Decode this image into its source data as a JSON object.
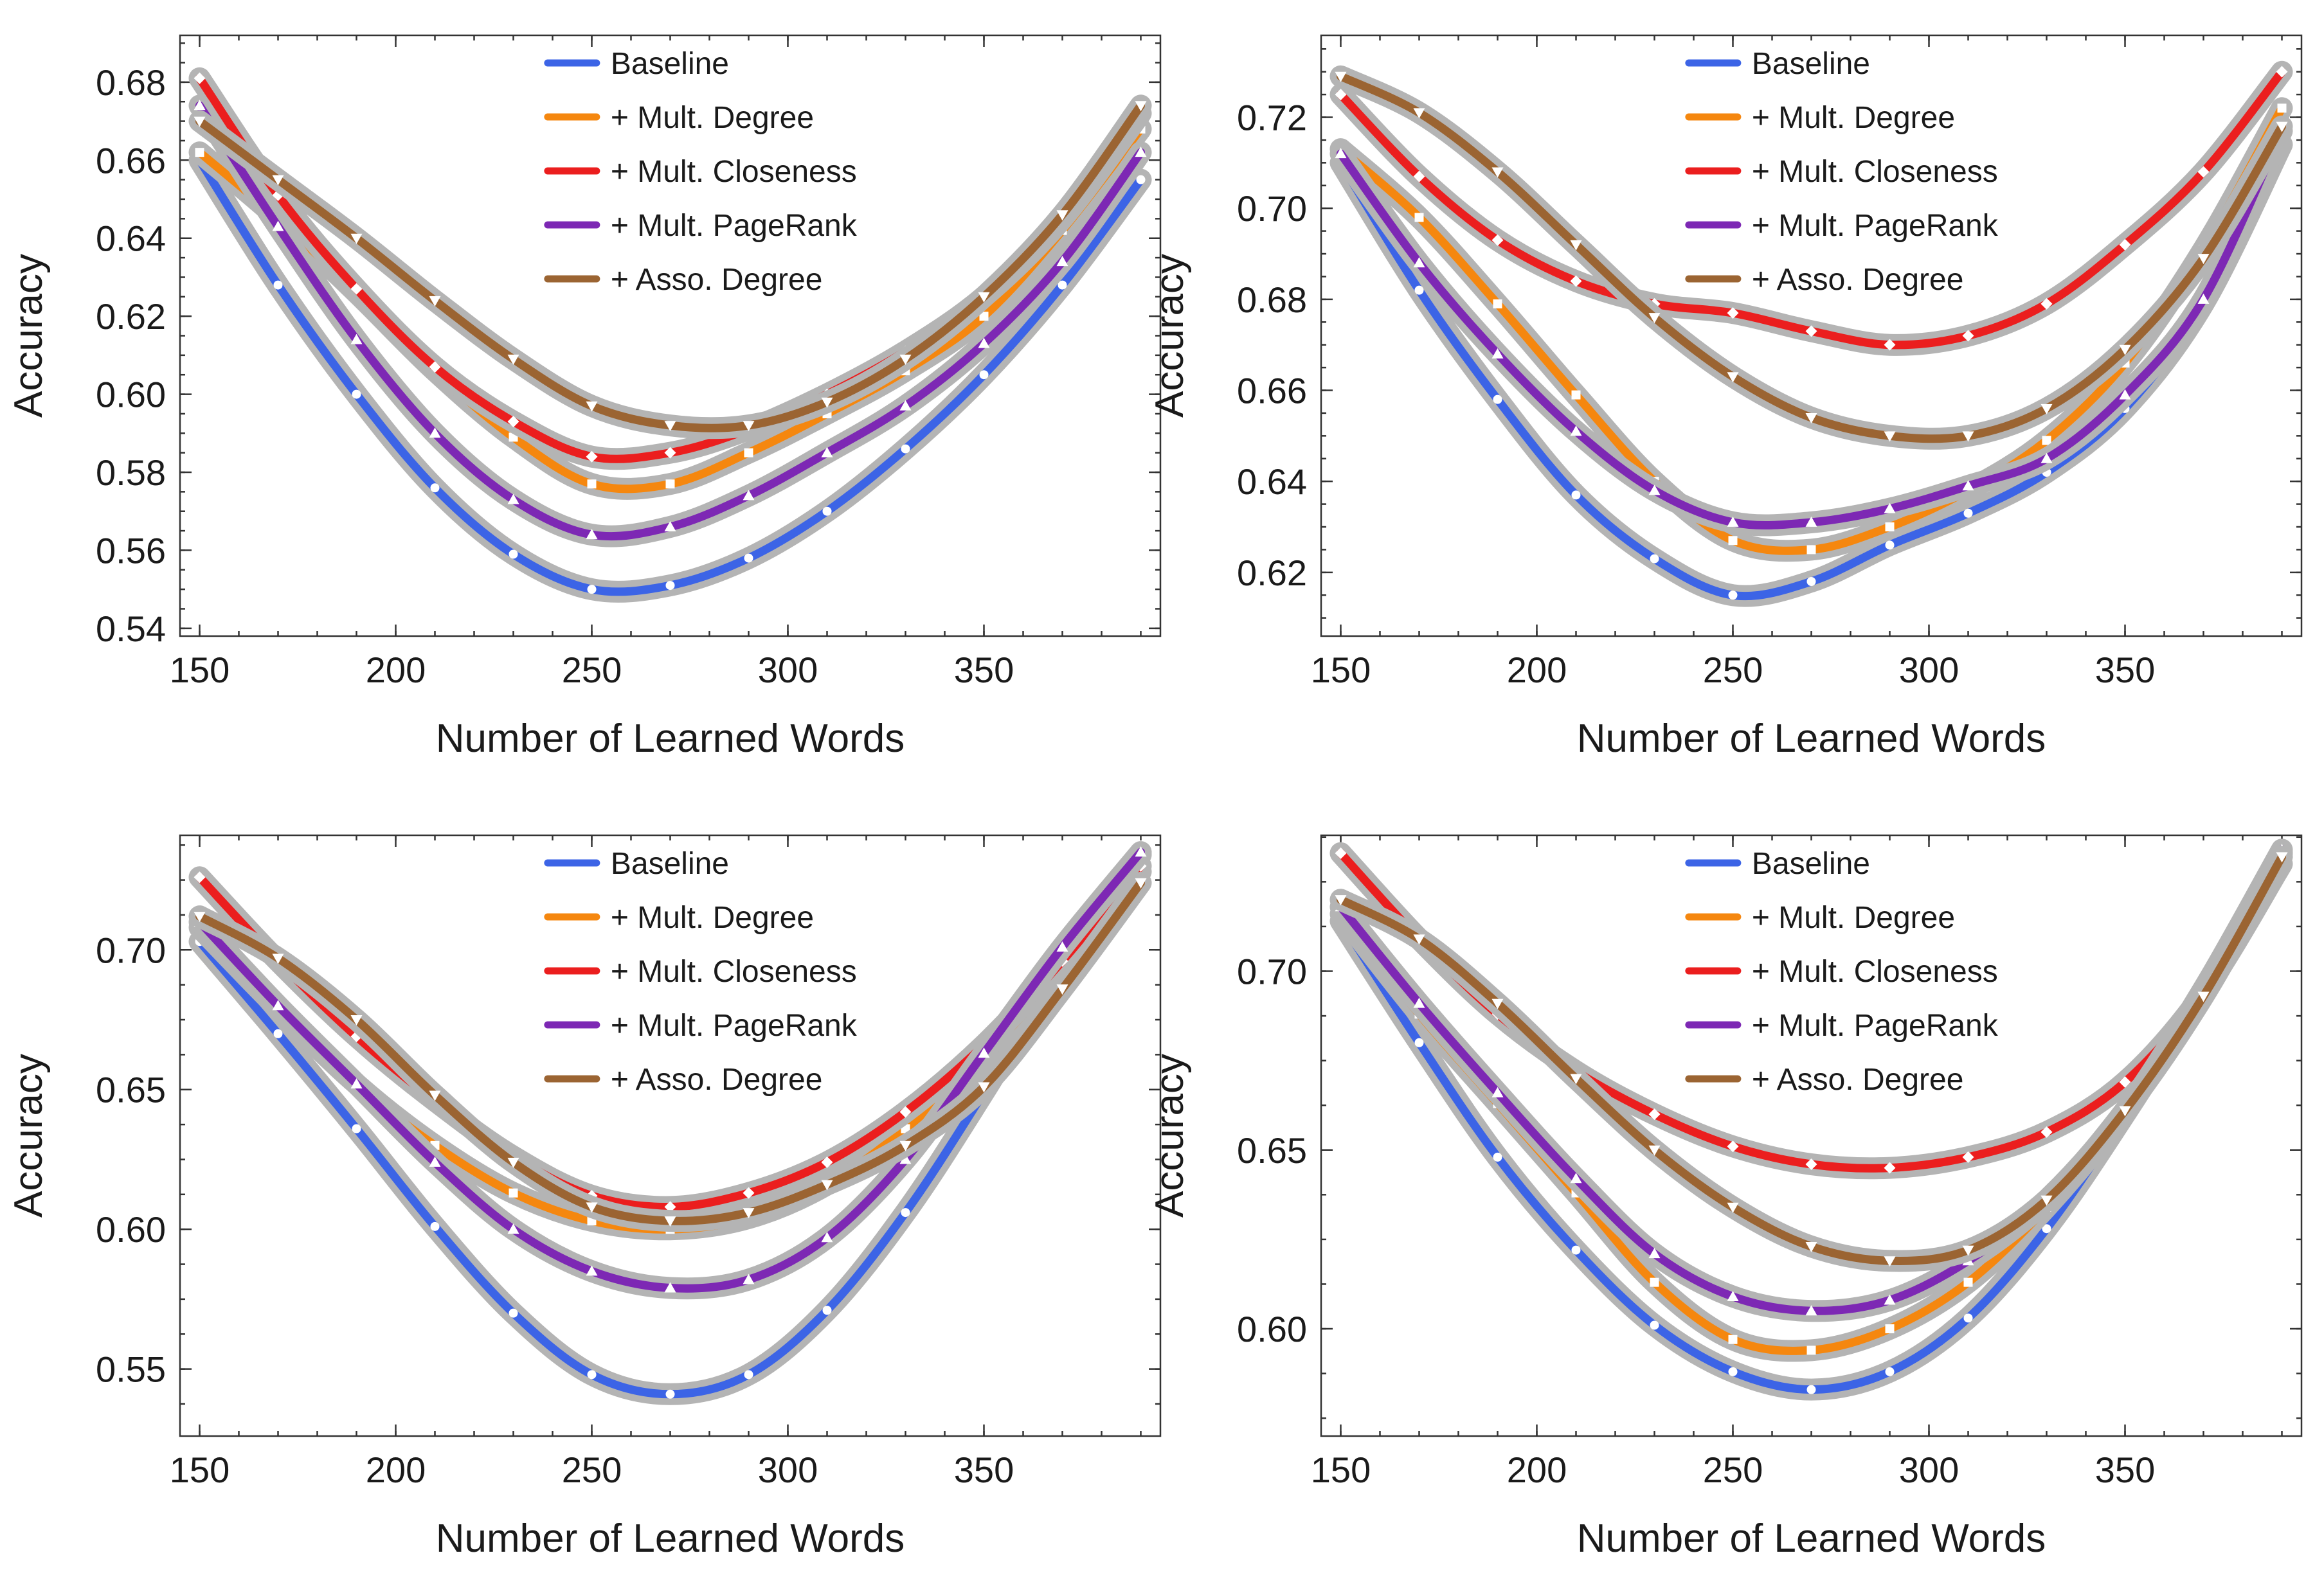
{
  "chart_data": [
    {
      "type": "line",
      "xlabel": "Number of Learned Words",
      "ylabel": "Accuracy",
      "xlim": [
        145,
        395
      ],
      "ylim": [
        0.538,
        0.692
      ],
      "xticks": [
        150,
        200,
        250,
        300,
        350
      ],
      "yticks": [
        0.54,
        0.56,
        0.58,
        0.6,
        0.62,
        0.64,
        0.66,
        0.68
      ],
      "ytick_labels": [
        "0.54",
        "0.56",
        "0.58",
        "0.60",
        "0.62",
        "0.64",
        "0.66",
        "0.68"
      ],
      "legend_position": "top-center",
      "x": [
        150,
        170,
        190,
        210,
        230,
        250,
        270,
        290,
        310,
        330,
        350,
        370,
        390
      ],
      "series": [
        {
          "name": "Baseline",
          "color": "#3c64e6",
          "marker": "circle",
          "values": [
            0.66,
            0.628,
            0.6,
            0.576,
            0.559,
            0.55,
            0.551,
            0.558,
            0.57,
            0.586,
            0.605,
            0.628,
            0.655
          ]
        },
        {
          "name": "+ Mult. Degree",
          "color": "#f5870f",
          "marker": "square",
          "values": [
            0.662,
            0.645,
            0.626,
            0.606,
            0.589,
            0.577,
            0.577,
            0.585,
            0.595,
            0.606,
            0.62,
            0.642,
            0.668
          ]
        },
        {
          "name": "+ Mult. Closeness",
          "color": "#eb1e1e",
          "marker": "diamond",
          "values": [
            0.681,
            0.651,
            0.627,
            0.607,
            0.593,
            0.584,
            0.585,
            0.591,
            0.6,
            0.611,
            0.625,
            0.645,
            0.672
          ]
        },
        {
          "name": "+ Mult. PageRank",
          "color": "#7d28b4",
          "marker": "triangle-up",
          "values": [
            0.674,
            0.643,
            0.614,
            0.59,
            0.573,
            0.564,
            0.566,
            0.574,
            0.585,
            0.597,
            0.613,
            0.634,
            0.662
          ]
        },
        {
          "name": "+ Asso. Degree",
          "color": "#9b6432",
          "marker": "triangle-down",
          "values": [
            0.67,
            0.655,
            0.64,
            0.624,
            0.609,
            0.597,
            0.592,
            0.592,
            0.598,
            0.609,
            0.625,
            0.646,
            0.674
          ]
        }
      ]
    },
    {
      "type": "line",
      "xlabel": "Number of Learned Words",
      "ylabel": "Accuracy",
      "xlim": [
        145,
        395
      ],
      "ylim": [
        0.606,
        0.738
      ],
      "xticks": [
        150,
        200,
        250,
        300,
        350
      ],
      "yticks": [
        0.62,
        0.64,
        0.66,
        0.68,
        0.7,
        0.72
      ],
      "ytick_labels": [
        "0.62",
        "0.64",
        "0.66",
        "0.68",
        "0.70",
        "0.72"
      ],
      "legend_position": "top-center",
      "x": [
        150,
        170,
        190,
        210,
        230,
        250,
        270,
        290,
        310,
        330,
        350,
        370,
        390
      ],
      "series": [
        {
          "name": "Baseline",
          "color": "#3c64e6",
          "marker": "circle",
          "values": [
            0.71,
            0.682,
            0.658,
            0.637,
            0.623,
            0.615,
            0.618,
            0.626,
            0.633,
            0.642,
            0.656,
            0.679,
            0.714
          ]
        },
        {
          "name": "+ Mult. Degree",
          "color": "#f5870f",
          "marker": "square",
          "values": [
            0.713,
            0.698,
            0.679,
            0.659,
            0.64,
            0.627,
            0.625,
            0.63,
            0.638,
            0.649,
            0.666,
            0.691,
            0.722
          ]
        },
        {
          "name": "+ Mult. Closeness",
          "color": "#eb1e1e",
          "marker": "diamond",
          "values": [
            0.725,
            0.707,
            0.693,
            0.684,
            0.679,
            0.677,
            0.673,
            0.67,
            0.672,
            0.679,
            0.692,
            0.708,
            0.73
          ]
        },
        {
          "name": "+ Mult. PageRank",
          "color": "#7d28b4",
          "marker": "triangle-up",
          "values": [
            0.712,
            0.688,
            0.668,
            0.651,
            0.638,
            0.631,
            0.631,
            0.634,
            0.639,
            0.645,
            0.659,
            0.68,
            0.717
          ]
        },
        {
          "name": "+ Asso. Degree",
          "color": "#9b6432",
          "marker": "triangle-down",
          "values": [
            0.729,
            0.721,
            0.708,
            0.692,
            0.676,
            0.663,
            0.654,
            0.65,
            0.65,
            0.656,
            0.669,
            0.689,
            0.718
          ]
        }
      ]
    },
    {
      "type": "line",
      "xlabel": "Number of Learned Words",
      "ylabel": "Accuracy",
      "xlim": [
        145,
        395
      ],
      "ylim": [
        0.526,
        0.741
      ],
      "xticks": [
        150,
        200,
        250,
        300,
        350
      ],
      "yticks": [
        0.55,
        0.6,
        0.65,
        0.7
      ],
      "ytick_labels": [
        "0.55",
        "0.60",
        "0.65",
        "0.70"
      ],
      "legend_position": "top-center",
      "x": [
        150,
        170,
        190,
        210,
        230,
        250,
        270,
        290,
        310,
        330,
        350,
        370,
        390
      ],
      "series": [
        {
          "name": "Baseline",
          "color": "#3c64e6",
          "marker": "circle",
          "values": [
            0.703,
            0.67,
            0.636,
            0.601,
            0.57,
            0.548,
            0.541,
            0.548,
            0.571,
            0.606,
            0.649,
            0.695,
            0.734
          ]
        },
        {
          "name": "+ Mult. Degree",
          "color": "#f5870f",
          "marker": "square",
          "values": [
            0.708,
            0.679,
            0.652,
            0.63,
            0.613,
            0.603,
            0.6,
            0.604,
            0.616,
            0.636,
            0.662,
            0.693,
            0.728
          ]
        },
        {
          "name": "+ Mult. Closeness",
          "color": "#eb1e1e",
          "marker": "diamond",
          "values": [
            0.726,
            0.696,
            0.669,
            0.646,
            0.626,
            0.612,
            0.608,
            0.613,
            0.624,
            0.642,
            0.666,
            0.696,
            0.73
          ]
        },
        {
          "name": "+ Mult. PageRank",
          "color": "#7d28b4",
          "marker": "triangle-up",
          "values": [
            0.71,
            0.68,
            0.652,
            0.624,
            0.6,
            0.585,
            0.579,
            0.582,
            0.597,
            0.625,
            0.663,
            0.701,
            0.735
          ]
        },
        {
          "name": "+ Asso. Degree",
          "color": "#9b6432",
          "marker": "triangle-down",
          "values": [
            0.712,
            0.697,
            0.675,
            0.648,
            0.624,
            0.608,
            0.603,
            0.606,
            0.616,
            0.63,
            0.651,
            0.686,
            0.724
          ]
        }
      ]
    },
    {
      "type": "line",
      "xlabel": "Number of Learned Words",
      "ylabel": "Accuracy",
      "xlim": [
        145,
        395
      ],
      "ylim": [
        0.57,
        0.738
      ],
      "xticks": [
        150,
        200,
        250,
        300,
        350
      ],
      "yticks": [
        0.6,
        0.65,
        0.7
      ],
      "ytick_labels": [
        "0.60",
        "0.65",
        "0.70"
      ],
      "legend_position": "top-center",
      "x": [
        150,
        170,
        190,
        210,
        230,
        250,
        270,
        290,
        310,
        330,
        350,
        370,
        390
      ],
      "series": [
        {
          "name": "Baseline",
          "color": "#3c64e6",
          "marker": "circle",
          "values": [
            0.714,
            0.68,
            0.648,
            0.622,
            0.601,
            0.588,
            0.583,
            0.588,
            0.603,
            0.628,
            0.66,
            0.695,
            0.733
          ]
        },
        {
          "name": "+ Mult. Degree",
          "color": "#f5870f",
          "marker": "square",
          "values": [
            0.716,
            0.688,
            0.663,
            0.638,
            0.613,
            0.597,
            0.594,
            0.6,
            0.613,
            0.634,
            0.661,
            0.695,
            0.733
          ]
        },
        {
          "name": "+ Mult. Closeness",
          "color": "#eb1e1e",
          "marker": "diamond",
          "values": [
            0.733,
            0.709,
            0.688,
            0.672,
            0.66,
            0.651,
            0.646,
            0.645,
            0.648,
            0.655,
            0.669,
            0.694,
            0.73
          ]
        },
        {
          "name": "+ Mult. PageRank",
          "color": "#7d28b4",
          "marker": "triangle-up",
          "values": [
            0.718,
            0.691,
            0.666,
            0.642,
            0.621,
            0.609,
            0.605,
            0.608,
            0.619,
            0.636,
            0.661,
            0.695,
            0.734
          ]
        },
        {
          "name": "+ Asso. Degree",
          "color": "#9b6432",
          "marker": "triangle-down",
          "values": [
            0.72,
            0.709,
            0.691,
            0.67,
            0.65,
            0.634,
            0.623,
            0.619,
            0.622,
            0.636,
            0.661,
            0.693,
            0.732
          ]
        }
      ]
    }
  ]
}
